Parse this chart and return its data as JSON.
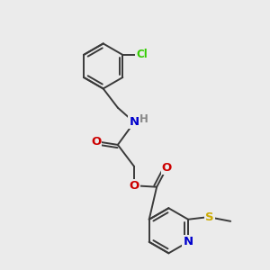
{
  "bg_color": "#ebebeb",
  "bond_color": "#3a3a3a",
  "bond_width": 1.4,
  "atom_colors": {
    "C": "#3a3a3a",
    "N": "#0000cc",
    "O": "#cc0000",
    "S": "#ccaa00",
    "Cl": "#33cc00",
    "H": "#888888"
  },
  "font_size": 8.5,
  "figsize": [
    3.0,
    3.0
  ],
  "dpi": 100
}
